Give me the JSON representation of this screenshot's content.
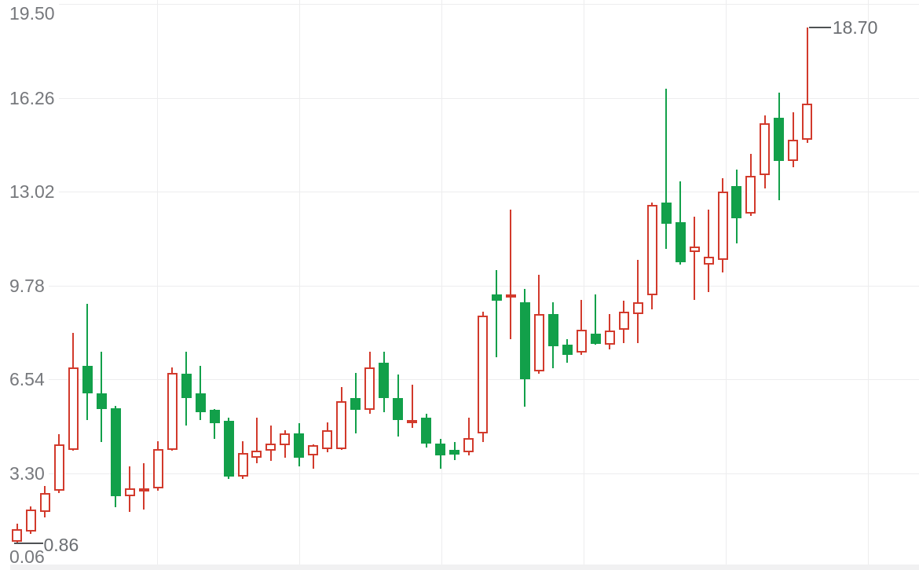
{
  "chart_data": {
    "type": "candlestick",
    "title": "",
    "xlabel": "",
    "ylabel": "",
    "grid": true,
    "legend": "none",
    "y_axis": {
      "tick_labels": [
        "19.50",
        "16.26",
        "13.02",
        "9.78",
        "6.54",
        "3.30",
        "0.06"
      ],
      "tick_values": [
        19.5,
        16.26,
        13.02,
        9.78,
        6.54,
        3.3,
        0.06
      ],
      "range": [
        0.06,
        19.5
      ]
    },
    "annotations": {
      "low": {
        "label": "0.86",
        "value": 0.86,
        "attached_candle": 0
      },
      "high": {
        "label": "18.70",
        "value": 18.7,
        "attached_candle": 56
      }
    },
    "colors": {
      "up": "#d23a2c",
      "down": "#12a04a",
      "grid": "#ededee",
      "axis_text": "#76787c",
      "annotation_text": "#6b6e72",
      "annotation_line": "#4f5254",
      "bottom_bar": "#f1f1f2"
    },
    "up_style": "hollow",
    "down_style": "solid",
    "candles": [
      {
        "o": 0.94,
        "h": 1.54,
        "l": 0.86,
        "c": 1.35
      },
      {
        "o": 1.27,
        "h": 2.16,
        "l": 1.19,
        "c": 2.03
      },
      {
        "o": 1.97,
        "h": 2.84,
        "l": 1.76,
        "c": 2.62
      },
      {
        "o": 2.7,
        "h": 4.63,
        "l": 2.62,
        "c": 4.28
      },
      {
        "o": 4.11,
        "h": 8.13,
        "l": 4.06,
        "c": 6.96
      },
      {
        "o": 7.01,
        "h": 9.13,
        "l": 5.14,
        "c": 6.04
      },
      {
        "o": 6.04,
        "h": 7.5,
        "l": 4.36,
        "c": 5.5
      },
      {
        "o": 5.55,
        "h": 5.63,
        "l": 2.13,
        "c": 2.51
      },
      {
        "o": 2.49,
        "h": 3.52,
        "l": 1.97,
        "c": 2.78
      },
      {
        "o": 2.65,
        "h": 3.65,
        "l": 2.05,
        "c": 2.76
      },
      {
        "o": 2.76,
        "h": 4.41,
        "l": 2.7,
        "c": 4.14
      },
      {
        "o": 4.11,
        "h": 6.96,
        "l": 4.06,
        "c": 6.77
      },
      {
        "o": 6.72,
        "h": 7.5,
        "l": 4.93,
        "c": 5.88
      },
      {
        "o": 6.04,
        "h": 6.99,
        "l": 5.14,
        "c": 5.41
      },
      {
        "o": 5.47,
        "h": 5.5,
        "l": 4.47,
        "c": 5.01
      },
      {
        "o": 5.09,
        "h": 5.22,
        "l": 3.11,
        "c": 3.19
      },
      {
        "o": 3.19,
        "h": 4.41,
        "l": 3.11,
        "c": 3.98
      },
      {
        "o": 3.84,
        "h": 5.2,
        "l": 3.65,
        "c": 4.06
      },
      {
        "o": 4.06,
        "h": 4.93,
        "l": 3.71,
        "c": 4.33
      },
      {
        "o": 4.25,
        "h": 4.79,
        "l": 3.82,
        "c": 4.66
      },
      {
        "o": 4.66,
        "h": 5.01,
        "l": 3.52,
        "c": 3.84
      },
      {
        "o": 3.92,
        "h": 4.28,
        "l": 3.46,
        "c": 4.25
      },
      {
        "o": 4.14,
        "h": 5.06,
        "l": 4.01,
        "c": 4.79
      },
      {
        "o": 4.14,
        "h": 6.28,
        "l": 4.11,
        "c": 5.77
      },
      {
        "o": 5.9,
        "h": 6.77,
        "l": 4.66,
        "c": 5.47
      },
      {
        "o": 5.47,
        "h": 7.5,
        "l": 5.36,
        "c": 6.96
      },
      {
        "o": 7.1,
        "h": 7.5,
        "l": 5.41,
        "c": 5.9
      },
      {
        "o": 5.9,
        "h": 6.69,
        "l": 4.55,
        "c": 5.14
      },
      {
        "o": 5.01,
        "h": 6.36,
        "l": 4.87,
        "c": 5.14
      },
      {
        "o": 5.2,
        "h": 5.36,
        "l": 4.19,
        "c": 4.33
      },
      {
        "o": 4.33,
        "h": 4.47,
        "l": 3.46,
        "c": 3.92
      },
      {
        "o": 4.11,
        "h": 4.38,
        "l": 3.76,
        "c": 3.95
      },
      {
        "o": 4.01,
        "h": 5.2,
        "l": 3.92,
        "c": 4.52
      },
      {
        "o": 4.68,
        "h": 8.86,
        "l": 4.38,
        "c": 8.75
      },
      {
        "o": 9.48,
        "h": 10.3,
        "l": 7.31,
        "c": 9.26
      },
      {
        "o": 9.35,
        "h": 12.41,
        "l": 7.91,
        "c": 9.48
      },
      {
        "o": 9.21,
        "h": 9.67,
        "l": 5.6,
        "c": 6.55
      },
      {
        "o": 6.82,
        "h": 10.16,
        "l": 6.72,
        "c": 8.8
      },
      {
        "o": 8.8,
        "h": 9.21,
        "l": 6.91,
        "c": 7.67
      },
      {
        "o": 7.72,
        "h": 7.91,
        "l": 7.1,
        "c": 7.37
      },
      {
        "o": 7.45,
        "h": 9.29,
        "l": 7.37,
        "c": 8.26
      },
      {
        "o": 8.1,
        "h": 9.48,
        "l": 7.72,
        "c": 7.77
      },
      {
        "o": 7.72,
        "h": 8.8,
        "l": 7.58,
        "c": 8.21
      },
      {
        "o": 8.26,
        "h": 9.26,
        "l": 7.8,
        "c": 8.86
      },
      {
        "o": 8.8,
        "h": 10.65,
        "l": 7.8,
        "c": 9.21
      },
      {
        "o": 9.43,
        "h": 12.65,
        "l": 8.94,
        "c": 12.55
      },
      {
        "o": 12.65,
        "h": 16.56,
        "l": 11.03,
        "c": 11.92
      },
      {
        "o": 11.97,
        "h": 13.36,
        "l": 10.51,
        "c": 10.57
      },
      {
        "o": 10.92,
        "h": 12.14,
        "l": 9.29,
        "c": 11.11
      },
      {
        "o": 10.49,
        "h": 12.41,
        "l": 9.56,
        "c": 10.76
      },
      {
        "o": 10.65,
        "h": 13.47,
        "l": 10.24,
        "c": 13.01
      },
      {
        "o": 13.2,
        "h": 13.77,
        "l": 11.24,
        "c": 12.11
      },
      {
        "o": 12.25,
        "h": 14.31,
        "l": 12.19,
        "c": 13.55
      },
      {
        "o": 13.6,
        "h": 15.64,
        "l": 13.14,
        "c": 15.37
      },
      {
        "o": 15.58,
        "h": 16.45,
        "l": 12.73,
        "c": 14.09
      },
      {
        "o": 14.09,
        "h": 15.77,
        "l": 13.87,
        "c": 14.82
      },
      {
        "o": 14.82,
        "h": 18.7,
        "l": 14.71,
        "c": 16.07
      }
    ]
  }
}
